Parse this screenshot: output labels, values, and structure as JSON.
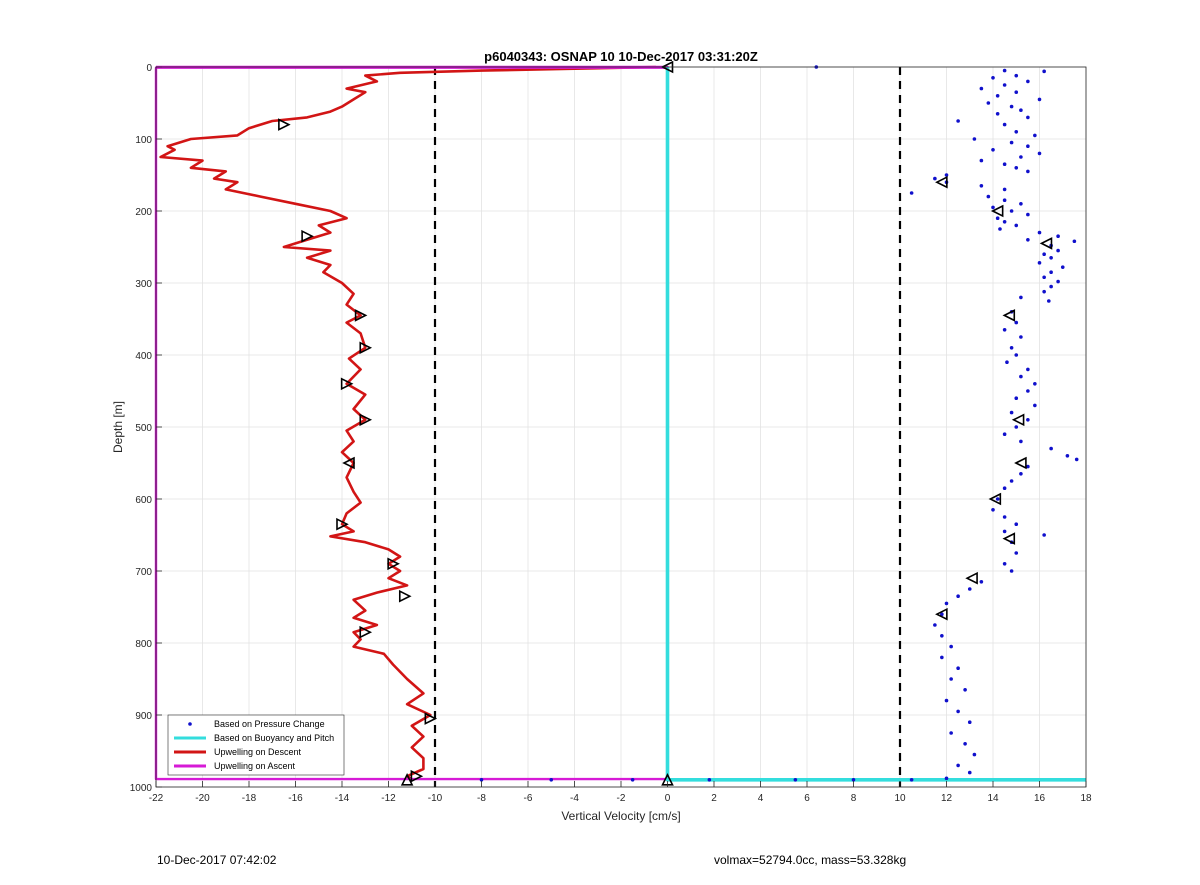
{
  "footer": {
    "date": "10-Dec-2017 07:42:02",
    "params": "volmax=52794.0cc, mass=53.328kg"
  },
  "colors": {
    "pressure": "#1010cc",
    "buoyancy": "#33dddd",
    "descent": "#d21515",
    "ascent": "#d61ad6",
    "threshold": "#000000"
  },
  "chart_data": {
    "type": "line",
    "title": "p6040343: OSNAP 10 10-Dec-2017 03:31:20Z",
    "xlabel": "Vertical Velocity [cm/s]",
    "ylabel": "Depth [m]",
    "xlim": [
      -22,
      18
    ],
    "ylim": [
      0,
      1000
    ],
    "y_reversed": true,
    "grid": true,
    "legend_position": "bottom-left",
    "x_ticks": [
      "-22",
      "-20",
      "-18",
      "-16",
      "-14",
      "-12",
      "-10",
      "-8",
      "-6",
      "-4",
      "-2",
      "0",
      "2",
      "4",
      "6",
      "8",
      "10",
      "12",
      "14",
      "16",
      "18"
    ],
    "y_ticks": [
      "0",
      "100",
      "200",
      "300",
      "400",
      "500",
      "600",
      "700",
      "800",
      "900",
      "1000"
    ],
    "thresholds": [
      -10,
      10
    ],
    "legend": [
      {
        "name": "Based on Pressure Change",
        "style": "dot",
        "color": "#1010cc"
      },
      {
        "name": "Based on Buoyancy and Pitch",
        "style": "line",
        "color": "#33dddd"
      },
      {
        "name": "Upwelling on Descent",
        "style": "line",
        "color": "#d21515"
      },
      {
        "name": "Upwelling on Ascent",
        "style": "line",
        "color": "#d61ad6"
      }
    ],
    "series": [
      {
        "name": "Upwelling on Descent",
        "kind": "line",
        "points": [
          [
            -0.5,
            0
          ],
          [
            -8,
            5
          ],
          [
            -11.5,
            8
          ],
          [
            -13,
            12
          ],
          [
            -12.5,
            20
          ],
          [
            -13.8,
            30
          ],
          [
            -13,
            35
          ],
          [
            -13.5,
            45
          ],
          [
            -14,
            55
          ],
          [
            -14.5,
            62
          ],
          [
            -15.5,
            70
          ],
          [
            -17,
            75
          ],
          [
            -18,
            85
          ],
          [
            -18.5,
            95
          ],
          [
            -20.5,
            100
          ],
          [
            -21.5,
            110
          ],
          [
            -21.2,
            115
          ],
          [
            -21.8,
            125
          ],
          [
            -20,
            130
          ],
          [
            -20.5,
            140
          ],
          [
            -19,
            145
          ],
          [
            -19.5,
            155
          ],
          [
            -18.5,
            160
          ],
          [
            -19,
            170
          ],
          [
            -17.5,
            180
          ],
          [
            -16,
            190
          ],
          [
            -14.5,
            200
          ],
          [
            -13.8,
            210
          ],
          [
            -15,
            220
          ],
          [
            -14.5,
            230
          ],
          [
            -15.5,
            240
          ],
          [
            -16.5,
            250
          ],
          [
            -14.5,
            255
          ],
          [
            -15.5,
            265
          ],
          [
            -14.5,
            275
          ],
          [
            -14.8,
            285
          ],
          [
            -14,
            300
          ],
          [
            -13.5,
            315
          ],
          [
            -13.8,
            330
          ],
          [
            -13.2,
            345
          ],
          [
            -13.8,
            355
          ],
          [
            -13.2,
            370
          ],
          [
            -13,
            390
          ],
          [
            -13.7,
            405
          ],
          [
            -13.2,
            420
          ],
          [
            -13.8,
            440
          ],
          [
            -13,
            455
          ],
          [
            -13.5,
            475
          ],
          [
            -13,
            490
          ],
          [
            -13.8,
            505
          ],
          [
            -13.5,
            520
          ],
          [
            -14,
            535
          ],
          [
            -13.5,
            550
          ],
          [
            -13.8,
            570
          ],
          [
            -13.5,
            590
          ],
          [
            -13.2,
            605
          ],
          [
            -13.8,
            620
          ],
          [
            -14,
            635
          ],
          [
            -13.5,
            645
          ],
          [
            -14.5,
            652
          ],
          [
            -13,
            660
          ],
          [
            -12,
            670
          ],
          [
            -11.5,
            680
          ],
          [
            -12,
            690
          ],
          [
            -11.5,
            700
          ],
          [
            -12,
            710
          ],
          [
            -11.2,
            720
          ],
          [
            -12.5,
            730
          ],
          [
            -13.5,
            740
          ],
          [
            -13,
            755
          ],
          [
            -13.5,
            765
          ],
          [
            -12.5,
            775
          ],
          [
            -13.5,
            785
          ],
          [
            -13.2,
            795
          ],
          [
            -13.5,
            805
          ],
          [
            -12.2,
            815
          ],
          [
            -11.8,
            830
          ],
          [
            -11.2,
            850
          ],
          [
            -10.5,
            870
          ],
          [
            -11.2,
            885
          ],
          [
            -10.2,
            900
          ],
          [
            -11,
            915
          ],
          [
            -10.5,
            930
          ],
          [
            -11,
            945
          ],
          [
            -10.5,
            960
          ],
          [
            -10.5,
            975
          ],
          [
            -11.2,
            985
          ],
          [
            -11,
            990
          ]
        ]
      },
      {
        "name": "Upwelling on Ascent",
        "kind": "line",
        "points": [
          [
            -22,
            0
          ],
          [
            0,
            0
          ],
          [
            0,
            1
          ],
          [
            -22,
            1
          ],
          [
            -22,
            989
          ],
          [
            0,
            989
          ]
        ]
      },
      {
        "name": "Based on Buoyancy and Pitch",
        "kind": "line",
        "points": [
          [
            0,
            0
          ],
          [
            0,
            990
          ],
          [
            18,
            990
          ]
        ]
      },
      {
        "name": "Based on Pressure Change",
        "kind": "scatter",
        "points": [
          [
            6.4,
            0
          ],
          [
            14.5,
            5
          ],
          [
            16.2,
            6
          ],
          [
            15,
            12
          ],
          [
            14,
            15
          ],
          [
            15.5,
            20
          ],
          [
            14.5,
            25
          ],
          [
            13.5,
            30
          ],
          [
            15,
            35
          ],
          [
            14.2,
            40
          ],
          [
            16,
            45
          ],
          [
            13.8,
            50
          ],
          [
            14.8,
            55
          ],
          [
            15.2,
            60
          ],
          [
            14.2,
            65
          ],
          [
            15.5,
            70
          ],
          [
            12.5,
            75
          ],
          [
            14.5,
            80
          ],
          [
            15,
            90
          ],
          [
            15.8,
            95
          ],
          [
            13.2,
            100
          ],
          [
            14.8,
            105
          ],
          [
            15.5,
            110
          ],
          [
            14,
            115
          ],
          [
            16,
            120
          ],
          [
            15.2,
            125
          ],
          [
            13.5,
            130
          ],
          [
            14.5,
            135
          ],
          [
            15,
            140
          ],
          [
            15.5,
            145
          ],
          [
            12,
            150
          ],
          [
            11.5,
            155
          ],
          [
            12,
            160
          ],
          [
            13.5,
            165
          ],
          [
            14.5,
            170
          ],
          [
            10.5,
            175
          ],
          [
            13.8,
            180
          ],
          [
            14.5,
            185
          ],
          [
            15.2,
            190
          ],
          [
            14,
            195
          ],
          [
            14.8,
            200
          ],
          [
            15.5,
            205
          ],
          [
            14.2,
            210
          ],
          [
            14.5,
            215
          ],
          [
            15,
            220
          ],
          [
            14.3,
            225
          ],
          [
            16,
            230
          ],
          [
            16.8,
            235
          ],
          [
            15.5,
            240
          ],
          [
            17.5,
            242
          ],
          [
            16.5,
            248
          ],
          [
            16.8,
            255
          ],
          [
            16.2,
            260
          ],
          [
            16.5,
            265
          ],
          [
            16,
            272
          ],
          [
            17,
            278
          ],
          [
            16.5,
            285
          ],
          [
            16.2,
            292
          ],
          [
            16.8,
            298
          ],
          [
            16.5,
            305
          ],
          [
            16.2,
            312
          ],
          [
            15.2,
            320
          ],
          [
            16.4,
            325
          ],
          [
            14.8,
            340
          ],
          [
            15,
            355
          ],
          [
            14.5,
            365
          ],
          [
            15.2,
            375
          ],
          [
            14.8,
            390
          ],
          [
            15,
            400
          ],
          [
            14.6,
            410
          ],
          [
            15.5,
            420
          ],
          [
            15.2,
            430
          ],
          [
            15.8,
            440
          ],
          [
            15.5,
            450
          ],
          [
            15,
            460
          ],
          [
            15.8,
            470
          ],
          [
            14.8,
            480
          ],
          [
            15.5,
            490
          ],
          [
            15,
            500
          ],
          [
            14.5,
            510
          ],
          [
            15.2,
            520
          ],
          [
            16.5,
            530
          ],
          [
            17.2,
            540
          ],
          [
            17.6,
            545
          ],
          [
            15.5,
            555
          ],
          [
            15.2,
            565
          ],
          [
            14.8,
            575
          ],
          [
            14.5,
            585
          ],
          [
            14.2,
            600
          ],
          [
            14,
            615
          ],
          [
            14.5,
            625
          ],
          [
            15,
            635
          ],
          [
            14.5,
            645
          ],
          [
            16.2,
            650
          ],
          [
            14.8,
            660
          ],
          [
            15,
            675
          ],
          [
            14.5,
            690
          ],
          [
            14.8,
            700
          ],
          [
            13.5,
            715
          ],
          [
            13,
            725
          ],
          [
            12.5,
            735
          ],
          [
            12,
            745
          ],
          [
            11.8,
            760
          ],
          [
            11.5,
            775
          ],
          [
            11.8,
            790
          ],
          [
            12.2,
            805
          ],
          [
            11.8,
            820
          ],
          [
            12.5,
            835
          ],
          [
            12.2,
            850
          ],
          [
            12.8,
            865
          ],
          [
            12,
            880
          ],
          [
            12.5,
            895
          ],
          [
            13,
            910
          ],
          [
            12.2,
            925
          ],
          [
            12.8,
            940
          ],
          [
            13.2,
            955
          ],
          [
            12.5,
            970
          ],
          [
            13,
            980
          ],
          [
            12,
            988
          ],
          [
            10.5,
            990
          ],
          [
            8,
            990
          ],
          [
            5.5,
            990
          ],
          [
            1.8,
            990
          ],
          [
            -1.5,
            990
          ],
          [
            -5,
            990
          ],
          [
            -8,
            990
          ]
        ]
      },
      {
        "name": "markers",
        "kind": "marker",
        "points": [
          [
            -16.5,
            80,
            "right"
          ],
          [
            -15.5,
            235,
            "right"
          ],
          [
            -13.2,
            345,
            "right"
          ],
          [
            -13,
            390,
            "right"
          ],
          [
            -13.8,
            440,
            "right"
          ],
          [
            -13,
            490,
            "right"
          ],
          [
            -13.7,
            550,
            "left"
          ],
          [
            -14,
            635,
            "right"
          ],
          [
            -11.8,
            690,
            "right"
          ],
          [
            -11.3,
            735,
            "right"
          ],
          [
            -13,
            785,
            "right"
          ],
          [
            -10.2,
            905,
            "right"
          ],
          [
            -10.8,
            985,
            "right"
          ],
          [
            -11.2,
            990,
            "up"
          ],
          [
            0,
            0,
            "left"
          ],
          [
            0,
            990,
            "up"
          ],
          [
            11.8,
            160,
            "left"
          ],
          [
            14.2,
            200,
            "left"
          ],
          [
            16.3,
            245,
            "left"
          ],
          [
            14.7,
            345,
            "left"
          ],
          [
            15.1,
            490,
            "left"
          ],
          [
            15.2,
            550,
            "left"
          ],
          [
            14.1,
            600,
            "left"
          ],
          [
            14.7,
            655,
            "left"
          ],
          [
            13.1,
            710,
            "left"
          ],
          [
            11.8,
            760,
            "left"
          ]
        ]
      }
    ]
  }
}
